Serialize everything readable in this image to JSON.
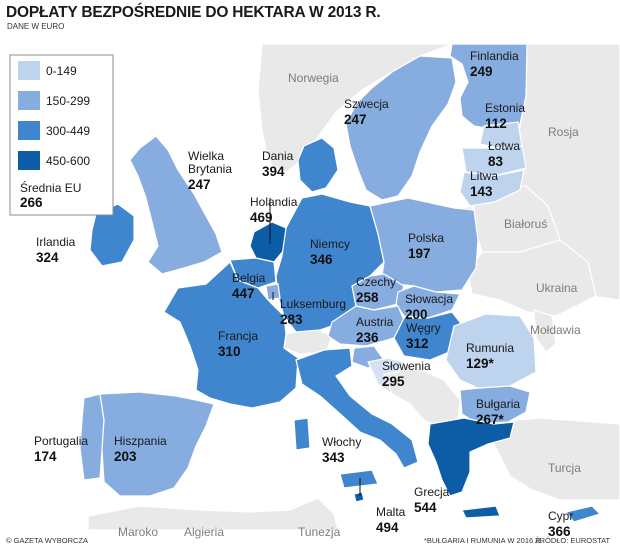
{
  "title": "DOPŁATY BEZPOŚREDNIE DO HEKTARA W 2013 R.",
  "subtitle": "DANE W EURO",
  "legend": {
    "items": [
      {
        "label": "0-149",
        "color": "#bdd3ee"
      },
      {
        "label": "150-299",
        "color": "#86ace0"
      },
      {
        "label": "300-449",
        "color": "#3f86cf"
      },
      {
        "label": "450-600",
        "color": "#0d5ca6"
      }
    ],
    "avg_label": "Średnia EU",
    "avg_value": "266"
  },
  "countries": [
    {
      "id": "finlandia",
      "name": "Finlandia",
      "value": "249",
      "class": "150-299"
    },
    {
      "id": "szwecja",
      "name": "Szwecja",
      "value": "247",
      "class": "150-299"
    },
    {
      "id": "estonia",
      "name": "Estonia",
      "value": "112",
      "class": "0-149"
    },
    {
      "id": "lotwa",
      "name": "Łotwa",
      "value": "83",
      "class": "0-149"
    },
    {
      "id": "litwa",
      "name": "Litwa",
      "value": "143",
      "class": "0-149"
    },
    {
      "id": "dania",
      "name": "Dania",
      "value": "394",
      "class": "300-449"
    },
    {
      "id": "wielka-brytania",
      "name": "Wielka\nBrytania",
      "value": "247",
      "class": "150-299"
    },
    {
      "id": "irlandia",
      "name": "Irlandia",
      "value": "324",
      "class": "300-449"
    },
    {
      "id": "holandia",
      "name": "Holandia",
      "value": "469",
      "class": "450-600"
    },
    {
      "id": "niemcy",
      "name": "Niemcy",
      "value": "346",
      "class": "300-449"
    },
    {
      "id": "polska",
      "name": "Polska",
      "value": "197",
      "class": "150-299"
    },
    {
      "id": "belgia",
      "name": "Belgia",
      "value": "447",
      "class": "300-449"
    },
    {
      "id": "luksemburg",
      "name": "Luksemburg",
      "value": "283",
      "class": "150-299"
    },
    {
      "id": "czechy",
      "name": "Czechy",
      "value": "258",
      "class": "150-299"
    },
    {
      "id": "slowacja",
      "name": "Słowacja",
      "value": "200",
      "class": "150-299"
    },
    {
      "id": "austria",
      "name": "Austria",
      "value": "236",
      "class": "150-299"
    },
    {
      "id": "wegry",
      "name": "Węgry",
      "value": "312",
      "class": "300-449"
    },
    {
      "id": "francja",
      "name": "Francja",
      "value": "310",
      "class": "300-449"
    },
    {
      "id": "slowenia",
      "name": "Słowenia",
      "value": "295",
      "class": "150-299"
    },
    {
      "id": "rumunia",
      "name": "Rumunia",
      "value": "129*",
      "class": "0-149"
    },
    {
      "id": "bulgaria",
      "name": "Bułgaria",
      "value": "267*",
      "class": "150-299"
    },
    {
      "id": "portugalia",
      "name": "Portugalia",
      "value": "174",
      "class": "150-299"
    },
    {
      "id": "hiszpania",
      "name": "Hiszpania",
      "value": "203",
      "class": "150-299"
    },
    {
      "id": "wlochy",
      "name": "Włochy",
      "value": "343",
      "class": "300-449"
    },
    {
      "id": "grecja",
      "name": "Grecja",
      "value": "544",
      "class": "450-600"
    },
    {
      "id": "malta",
      "name": "Malta",
      "value": "494",
      "class": "450-600"
    },
    {
      "id": "cypr",
      "name": "Cypr",
      "value": "366",
      "class": "300-449"
    }
  ],
  "neighbors": [
    "Norwegia",
    "Rosja",
    "Białoruś",
    "Ukraina",
    "Mołdawia",
    "Turcja",
    "Maroko",
    "Algieria",
    "Tunezja"
  ],
  "footer": {
    "credit": "© GAZETA WYBORCZA",
    "note": "*BUŁGARIA I RUMUNIA W 2016 R.",
    "source": "ŹRÓDŁO: EUROSTAT"
  }
}
